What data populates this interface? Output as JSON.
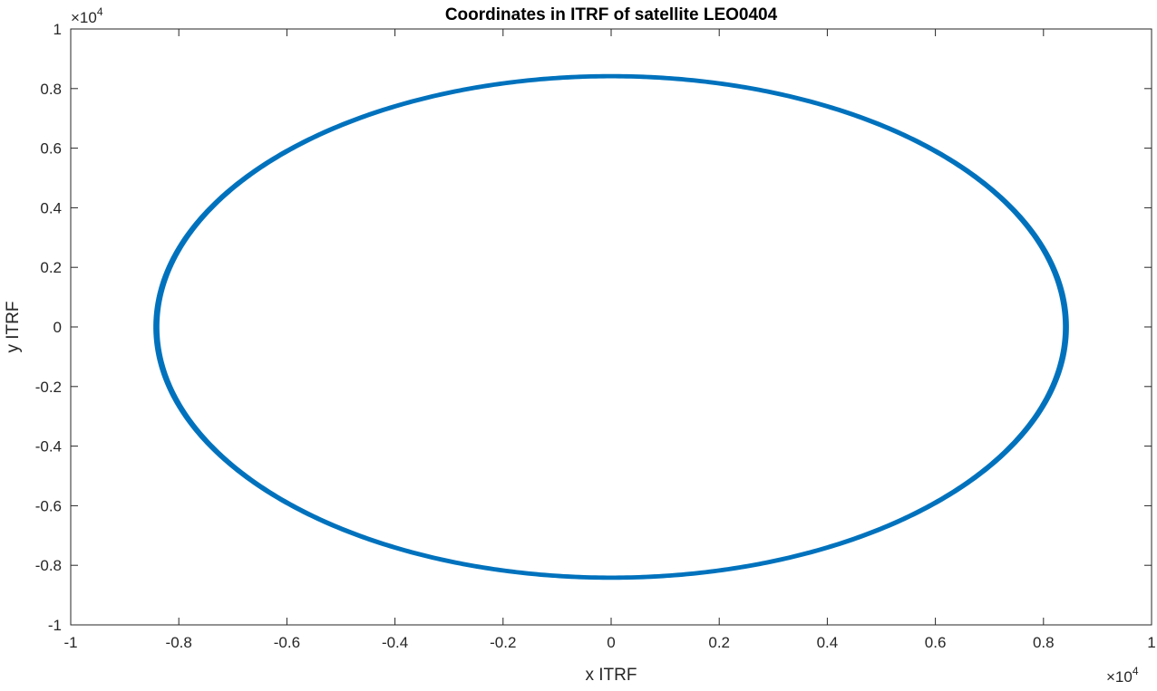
{
  "chart_data": {
    "type": "line",
    "title": "Coordinates in ITRF of satellite LEO0404",
    "xlabel": "x ITRF",
    "ylabel": "y ITRF",
    "xlim": [
      -10000,
      10000
    ],
    "ylim": [
      -10000,
      10000
    ],
    "x_exponent_label": {
      "base": "×10",
      "exp": "4"
    },
    "y_exponent_label": {
      "base": "×10",
      "exp": "4"
    },
    "xticks": [
      -1,
      -0.8,
      -0.6,
      -0.4,
      -0.2,
      0,
      0.2,
      0.4,
      0.6,
      0.8,
      1
    ],
    "yticks": [
      -1,
      -0.8,
      -0.6,
      -0.4,
      -0.2,
      0,
      0.2,
      0.4,
      0.6,
      0.8,
      1
    ],
    "xtick_labels": [
      "-1",
      "-0.8",
      "-0.6",
      "-0.4",
      "-0.2",
      "0",
      "0.2",
      "0.4",
      "0.6",
      "0.8",
      "1"
    ],
    "ytick_labels": [
      "-1",
      "-0.8",
      "-0.6",
      "-0.4",
      "-0.2",
      "0",
      "0.2",
      "0.4",
      "0.6",
      "0.8",
      "1"
    ],
    "grid": false,
    "series": [
      {
        "color": "#0072BD",
        "shape": "ellipse",
        "center": [
          0,
          0
        ],
        "x_radius": 8450,
        "y_radius": 8450,
        "x_radius_inner": 8380,
        "y_radius_inner": 8380
      }
    ]
  }
}
